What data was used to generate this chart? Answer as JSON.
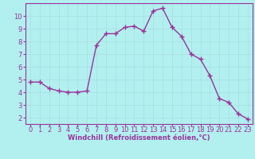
{
  "x": [
    0,
    1,
    2,
    3,
    4,
    5,
    6,
    7,
    8,
    9,
    10,
    11,
    12,
    13,
    14,
    15,
    16,
    17,
    18,
    19,
    20,
    21,
    22,
    23
  ],
  "y": [
    4.8,
    4.8,
    4.3,
    4.1,
    4.0,
    4.0,
    4.1,
    7.7,
    8.6,
    8.6,
    9.1,
    9.2,
    8.8,
    10.4,
    10.6,
    9.1,
    8.4,
    7.0,
    6.6,
    5.3,
    3.5,
    3.2,
    2.3,
    1.9
  ],
  "line_color": "#993399",
  "marker": "+",
  "marker_size": 4,
  "bg_color": "#b2f0f0",
  "grid_color": "#aadddd",
  "xlabel": "Windchill (Refroidissement éolien,°C)",
  "xlabel_color": "#993399",
  "tick_color": "#993399",
  "ylim": [
    1.5,
    11.0
  ],
  "xlim": [
    -0.5,
    23.5
  ],
  "yticks": [
    2,
    3,
    4,
    5,
    6,
    7,
    8,
    9,
    10
  ],
  "xticks": [
    0,
    1,
    2,
    3,
    4,
    5,
    6,
    7,
    8,
    9,
    10,
    11,
    12,
    13,
    14,
    15,
    16,
    17,
    18,
    19,
    20,
    21,
    22,
    23
  ],
  "spine_color": "#993399",
  "tick_fontsize": 6.0,
  "xlabel_fontsize": 6.0,
  "linewidth": 1.0
}
